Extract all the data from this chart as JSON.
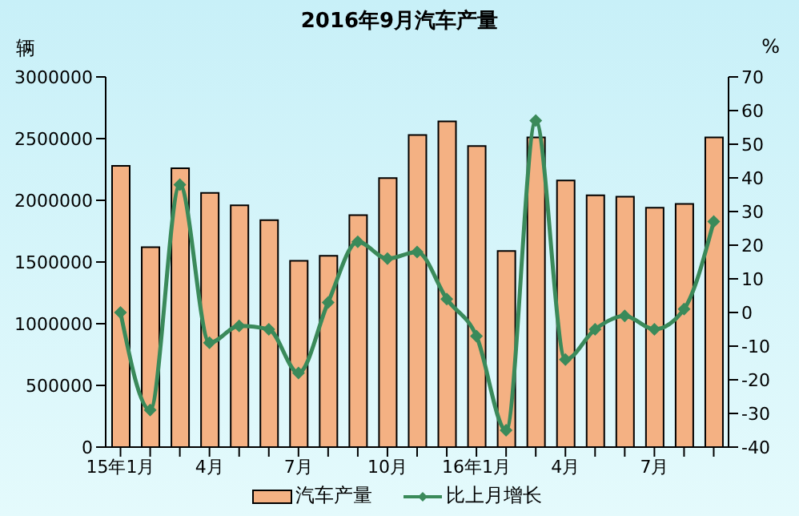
{
  "chart_data": {
    "type": "bar",
    "title": "2016年9月汽车产量",
    "ylabel": "辆",
    "y2label": "%",
    "categories": [
      "15年1月",
      null,
      null,
      "4月",
      null,
      null,
      "7月",
      null,
      null,
      "10月",
      null,
      null,
      "16年1月",
      null,
      null,
      "4月",
      null,
      null,
      "7月",
      null,
      null
    ],
    "series": [
      {
        "name": "汽车产量",
        "color": "#f4b183",
        "values": [
          2280000,
          1620000,
          2260000,
          2060000,
          1960000,
          1840000,
          1510000,
          1550000,
          1880000,
          2180000,
          2530000,
          2640000,
          2440000,
          1590000,
          2510000,
          2160000,
          2040000,
          2030000,
          1940000,
          1970000,
          2510000
        ]
      },
      {
        "name": "比上月增长",
        "type": "line",
        "axis": "y2",
        "color": "#3a8a5a",
        "marker": "diamond",
        "values": [
          0,
          -29,
          38,
          -9,
          -4,
          -5,
          -18,
          3,
          21,
          16,
          18,
          4,
          -7,
          -35,
          57,
          -14,
          -5,
          -1,
          -5,
          1,
          27
        ]
      }
    ],
    "ylim": [
      0,
      3000000
    ],
    "yticks": [
      0,
      500000,
      1000000,
      1500000,
      2000000,
      2500000,
      3000000
    ],
    "y2lim": [
      -40,
      70
    ],
    "y2ticks": [
      -40,
      -30,
      -20,
      -10,
      0,
      10,
      20,
      30,
      40,
      50,
      60,
      70
    ],
    "legend": "bottom",
    "grid": false
  }
}
